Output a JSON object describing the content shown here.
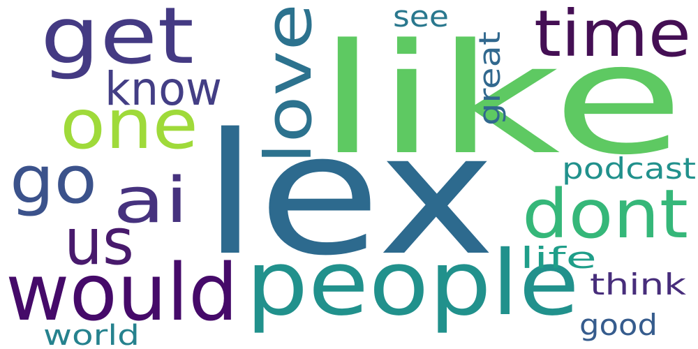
{
  "words": {
    "lex": {
      "text": "lex",
      "color": "#2d6a8e"
    },
    "like": {
      "text": "like",
      "color": "#5ec962"
    },
    "people": {
      "text": "people",
      "color": "#21918c"
    },
    "get": {
      "text": "get",
      "color": "#443a83"
    },
    "time": {
      "text": "time",
      "color": "#440f54"
    },
    "one": {
      "text": "one",
      "color": "#9fda3a"
    },
    "would": {
      "text": "would",
      "color": "#450a69"
    },
    "dont": {
      "text": "dont",
      "color": "#35b779"
    },
    "love": {
      "text": "love",
      "color": "#2c728e"
    },
    "go": {
      "text": "go",
      "color": "#3b528b"
    },
    "us": {
      "text": "us",
      "color": "#481a6c"
    },
    "ai": {
      "text": "ai",
      "color": "#46327e"
    },
    "know": {
      "text": "know",
      "color": "#433e85"
    },
    "podcast": {
      "text": "podcast",
      "color": "#21918c"
    },
    "think": {
      "text": "think",
      "color": "#472d7b"
    },
    "see": {
      "text": "see",
      "color": "#2a788e"
    },
    "great": {
      "text": "great",
      "color": "#31688e"
    },
    "life": {
      "text": "life",
      "color": "#1f9e89"
    },
    "good": {
      "text": "good",
      "color": "#365c8d"
    },
    "world": {
      "text": "world",
      "color": "#26828e"
    }
  }
}
